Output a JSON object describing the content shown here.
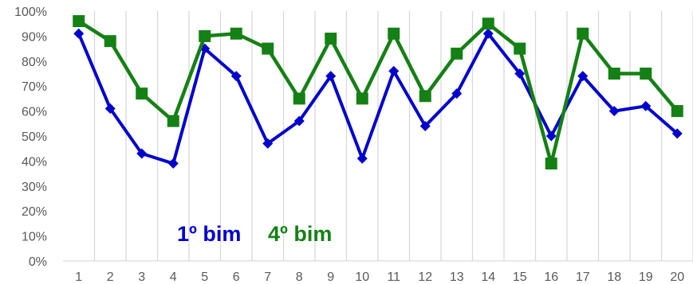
{
  "chart_data": {
    "type": "line",
    "title": "",
    "xlabel": "",
    "ylabel": "",
    "categories": [
      "1",
      "2",
      "3",
      "4",
      "5",
      "6",
      "7",
      "8",
      "9",
      "10",
      "11",
      "12",
      "13",
      "14",
      "15",
      "16",
      "17",
      "18",
      "19",
      "20"
    ],
    "y_ticks": [
      "0%",
      "10%",
      "20%",
      "30%",
      "40%",
      "50%",
      "60%",
      "70%",
      "80%",
      "90%",
      "100%"
    ],
    "ylim": [
      0,
      100
    ],
    "grid": "vertical",
    "legend_placement": "inside-bottom-left",
    "series": [
      {
        "name": "1º bim",
        "color": "#0000CC",
        "marker": "diamond",
        "values": [
          91,
          61,
          43,
          39,
          85,
          74,
          47,
          56,
          74,
          41,
          76,
          54,
          67,
          91,
          75,
          50,
          74,
          60,
          62,
          51
        ]
      },
      {
        "name": "4º bim",
        "color": "#158015",
        "marker": "square",
        "values": [
          96,
          88,
          67,
          56,
          90,
          91,
          85,
          65,
          89,
          65,
          91,
          66,
          83,
          95,
          85,
          39,
          91,
          75,
          75,
          60
        ]
      }
    ]
  }
}
